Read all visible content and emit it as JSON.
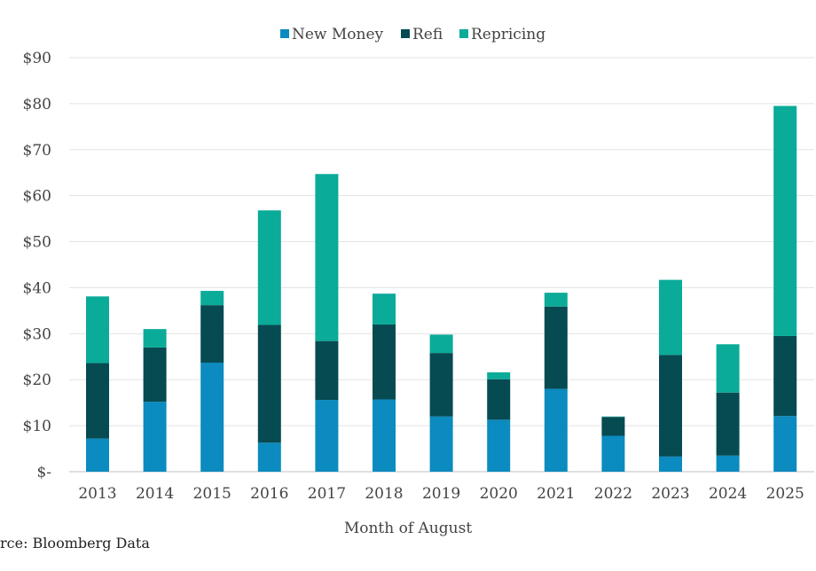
{
  "chart_data": {
    "type": "bar",
    "stacked": true,
    "title": "",
    "xlabel": "Month of August",
    "ylabel": "",
    "ylim": [
      0,
      90
    ],
    "yticks": [
      0,
      10,
      20,
      30,
      40,
      50,
      60,
      70,
      80,
      90
    ],
    "ytick_labels": [
      "$-",
      "$10",
      "$20",
      "$30",
      "$40",
      "$50",
      "$60",
      "$70",
      "$80",
      "$90"
    ],
    "grid": true,
    "legend_position": "top-center",
    "categories": [
      "2013",
      "2014",
      "2015",
      "2016",
      "2017",
      "2018",
      "2019",
      "2020",
      "2021",
      "2022",
      "2023",
      "2024",
      "2025"
    ],
    "series": [
      {
        "name": "New Money",
        "color": "#0b8bbf",
        "values": [
          7.2,
          15.2,
          23.7,
          6.3,
          15.6,
          15.7,
          12.0,
          11.3,
          18.0,
          7.8,
          3.3,
          3.5,
          12.1
        ]
      },
      {
        "name": "Refi",
        "color": "#064b52",
        "values": [
          16.4,
          11.8,
          12.5,
          25.6,
          12.8,
          16.3,
          13.8,
          8.8,
          17.9,
          4.1,
          22.1,
          13.7,
          17.4
        ]
      },
      {
        "name": "Repricing",
        "color": "#0aab98",
        "values": [
          14.5,
          4.0,
          3.1,
          24.9,
          36.3,
          6.7,
          4.0,
          1.5,
          3.0,
          0.1,
          16.3,
          10.5,
          50.0
        ]
      }
    ]
  },
  "source_note": "rce: Bloomberg Data"
}
